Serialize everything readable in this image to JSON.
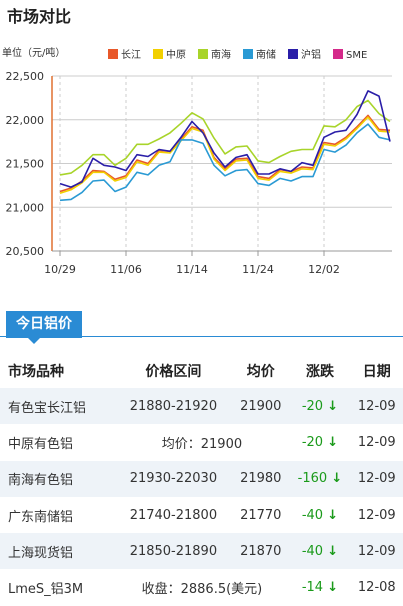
{
  "header": {
    "title": "市场对比"
  },
  "chart_data": {
    "type": "line",
    "ylabel": "单位（元/吨）",
    "ylim": [
      20500,
      22500
    ],
    "yticks": [
      "22,500",
      "22,000",
      "21,500",
      "21,000",
      "20,500"
    ],
    "ytick_values": [
      22500,
      22000,
      21500,
      21000,
      20500
    ],
    "xtick_labels": [
      "10/29",
      "11/06",
      "11/14",
      "11/24",
      "12/02"
    ],
    "xtick_index": [
      0,
      6,
      12,
      18,
      24
    ],
    "n_points": 31,
    "series": [
      {
        "name": "长江",
        "color": "#e8582a",
        "values": [
          21180,
          21220,
          21300,
          21420,
          21410,
          21320,
          21360,
          21540,
          21500,
          21650,
          21640,
          21780,
          21920,
          21880,
          21570,
          21440,
          21550,
          21560,
          21350,
          21330,
          21430,
          21410,
          21460,
          21450,
          21740,
          21720,
          21800,
          21920,
          22050,
          21890,
          21880
        ]
      },
      {
        "name": "中原",
        "color": "#f2d000",
        "values": [
          21160,
          21200,
          21280,
          21400,
          21400,
          21300,
          21340,
          21520,
          21480,
          21630,
          21620,
          21760,
          21900,
          21860,
          21550,
          21420,
          21530,
          21540,
          21330,
          21310,
          21410,
          21390,
          21440,
          21430,
          21720,
          21700,
          21780,
          21900,
          22030,
          21870,
          21860
        ]
      },
      {
        "name": "南海",
        "color": "#a8d42a",
        "values": [
          21370,
          21390,
          21480,
          21600,
          21600,
          21480,
          21560,
          21720,
          21720,
          21780,
          21850,
          21960,
          22080,
          22010,
          21790,
          21610,
          21690,
          21700,
          21530,
          21510,
          21580,
          21640,
          21660,
          21660,
          21930,
          21920,
          22000,
          22150,
          22220,
          22070,
          21980
        ]
      },
      {
        "name": "南储",
        "color": "#2a9ad4",
        "values": [
          21080,
          21090,
          21170,
          21300,
          21310,
          21180,
          21230,
          21400,
          21370,
          21480,
          21520,
          21770,
          21770,
          21730,
          21480,
          21360,
          21420,
          21430,
          21270,
          21250,
          21330,
          21300,
          21350,
          21350,
          21660,
          21630,
          21710,
          21850,
          21950,
          21800,
          21770
        ]
      },
      {
        "name": "沪铝",
        "color": "#2a1ea8",
        "values": [
          21270,
          21230,
          21290,
          21560,
          21480,
          21460,
          21420,
          21600,
          21580,
          21660,
          21640,
          21800,
          21980,
          21850,
          21620,
          21460,
          21570,
          21600,
          21380,
          21380,
          21440,
          21410,
          21510,
          21480,
          21800,
          21860,
          21880,
          22060,
          22330,
          22270,
          21750
        ]
      },
      {
        "name": "SME",
        "color": "#d42a8a",
        "values": []
      }
    ]
  },
  "tab": {
    "label": "今日铝价"
  },
  "table": {
    "headers": [
      "市场品种",
      "价格区间",
      "均价",
      "涨跌",
      "日期"
    ],
    "rows": [
      {
        "name": "有色宝长江铝",
        "range": "21880-21920",
        "avg": "21900",
        "change": "-20",
        "date": "12-09"
      },
      {
        "name": "中原有色铝",
        "avg_text": "均价：21900",
        "change": "-20",
        "date": "12-09"
      },
      {
        "name": "南海有色铝",
        "range": "21930-22030",
        "avg": "21980",
        "change": "-160",
        "date": "12-09"
      },
      {
        "name": "广东南储铝",
        "range": "21740-21800",
        "avg": "21770",
        "change": "-40",
        "date": "12-09"
      },
      {
        "name": "上海现货铝",
        "range": "21850-21890",
        "avg": "21870",
        "change": "-40",
        "date": "12-09"
      },
      {
        "name": "LmeS_铝3M",
        "avg_text": "收盘：2886.5(美元)",
        "change": "-14",
        "date": "12-08"
      }
    ]
  },
  "icons": {
    "down_arrow": "down-arrow-icon"
  }
}
